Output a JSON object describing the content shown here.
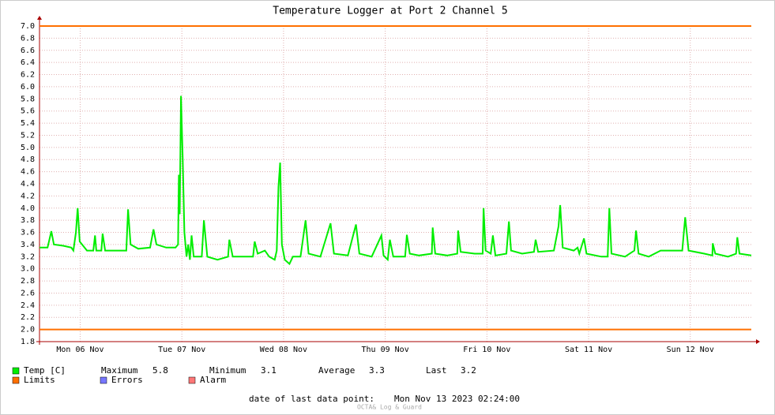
{
  "chart_data": {
    "type": "line",
    "title": "Temperature Logger at Port 2 Channel 5",
    "xlim": [
      0,
      168
    ],
    "xticks": [
      {
        "value": 9.6,
        "label": "Mon 06 Nov"
      },
      {
        "value": 33.6,
        "label": "Tue 07 Nov"
      },
      {
        "value": 57.6,
        "label": "Wed 08 Nov"
      },
      {
        "value": 81.6,
        "label": "Thu 09 Nov"
      },
      {
        "value": 105.6,
        "label": "Fri 10 Nov"
      },
      {
        "value": 129.6,
        "label": "Sat 11 Nov"
      },
      {
        "value": 153.6,
        "label": "Sun 12 Nov"
      }
    ],
    "ylim": [
      1.8,
      7.0
    ],
    "yticks": [
      1.8,
      {
        "value": 2.0,
        "label": "2.0"
      },
      2.2,
      2.4,
      2.6,
      2.8,
      {
        "value": 3.0,
        "label": "3.0"
      },
      3.2,
      3.4,
      3.6,
      3.8,
      {
        "value": 4.0,
        "label": "4.0"
      },
      4.2,
      4.4,
      4.6,
      4.8,
      {
        "value": 5.0,
        "label": "5.0"
      },
      5.2,
      5.4,
      5.6,
      5.8,
      {
        "value": 6.0,
        "label": "6.0"
      },
      6.2,
      6.4,
      6.6,
      6.8,
      {
        "value": 7.0,
        "label": "7.0"
      }
    ],
    "grid": true,
    "series": [
      {
        "name": "Temp [C]",
        "color": "#00ee00",
        "x": [
          0,
          1.9,
          2.8,
          3.4,
          5.6,
          7.5,
          8.0,
          8.6,
          9.0,
          9.5,
          11.2,
          12.7,
          13.1,
          13.4,
          14.6,
          14.9,
          15.5,
          18.7,
          20.5,
          20.9,
          21.5,
          23.3,
          26.1,
          26.9,
          27.6,
          29.9,
          32.1,
          32.7,
          32.9,
          33.1,
          33.4,
          33.8,
          34.2,
          34.7,
          35.1,
          35.5,
          35.9,
          36.4,
          38.3,
          38.8,
          39.6,
          42.0,
          44.5,
          44.8,
          45.6,
          48.6,
          50.4,
          50.8,
          51.5,
          53.2,
          54.2,
          55.5,
          56.0,
          56.4,
          56.8,
          57.2,
          57.9,
          59.0,
          59.8,
          61.6,
          62.8,
          63.5,
          66.3,
          68.7,
          69.5,
          72.8,
          74.7,
          75.5,
          78.4,
          80.7,
          81.2,
          82.2,
          82.7,
          83.5,
          86.3,
          86.7,
          87.4,
          89.6,
          92.6,
          92.8,
          93.4,
          96.2,
          98.6,
          98.8,
          99.4,
          102.7,
          104.6,
          104.8,
          105.3,
          106.5,
          107.0,
          107.6,
          110.2,
          110.8,
          111.3,
          113.9,
          116.7,
          117.1,
          117.7,
          121.4,
          122.5,
          122.9,
          123.5,
          126.1,
          127.0,
          127.4,
          128.5,
          129.1,
          132.6,
          134.1,
          134.5,
          135.0,
          138.2,
          140.4,
          140.8,
          141.4,
          143.8,
          146.6,
          149.4,
          151.7,
          152.4,
          153.2,
          156.9,
          158.8,
          158.9,
          159.5,
          162.5,
          164.4,
          164.7,
          165.2,
          168
        ],
        "values": [
          3.35,
          3.35,
          3.62,
          3.4,
          3.38,
          3.35,
          3.3,
          3.6,
          4.0,
          3.45,
          3.3,
          3.3,
          3.55,
          3.3,
          3.3,
          3.58,
          3.3,
          3.3,
          3.3,
          3.98,
          3.4,
          3.33,
          3.35,
          3.65,
          3.4,
          3.35,
          3.35,
          3.4,
          4.55,
          3.9,
          5.85,
          4.8,
          3.6,
          3.2,
          3.4,
          3.15,
          3.55,
          3.2,
          3.2,
          3.8,
          3.2,
          3.15,
          3.2,
          3.48,
          3.2,
          3.2,
          3.2,
          3.45,
          3.25,
          3.3,
          3.2,
          3.15,
          3.3,
          4.35,
          4.75,
          3.4,
          3.15,
          3.08,
          3.2,
          3.2,
          3.8,
          3.25,
          3.2,
          3.75,
          3.25,
          3.22,
          3.73,
          3.25,
          3.2,
          3.55,
          3.22,
          3.15,
          3.48,
          3.2,
          3.2,
          3.56,
          3.25,
          3.22,
          3.25,
          3.68,
          3.25,
          3.22,
          3.25,
          3.63,
          3.28,
          3.25,
          3.25,
          4.0,
          3.3,
          3.25,
          3.55,
          3.22,
          3.25,
          3.78,
          3.3,
          3.25,
          3.28,
          3.48,
          3.28,
          3.3,
          3.7,
          4.05,
          3.35,
          3.3,
          3.35,
          3.25,
          3.5,
          3.25,
          3.2,
          3.2,
          4.0,
          3.25,
          3.2,
          3.3,
          3.63,
          3.25,
          3.2,
          3.3,
          3.3,
          3.3,
          3.85,
          3.3,
          3.25,
          3.22,
          3.42,
          3.25,
          3.2,
          3.25,
          3.52,
          3.25,
          3.22
        ]
      }
    ],
    "limits": {
      "name": "Limits",
      "color": "#ff7000",
      "values": [
        2.0,
        7.0
      ]
    },
    "legend_extra": [
      {
        "name": "Errors",
        "color": "#7777ff"
      },
      {
        "name": "Alarm",
        "color": "#ff7777"
      }
    ],
    "stats": [
      {
        "label": "Maximum",
        "value": 5.8
      },
      {
        "label": "Minimum",
        "value": 3.1
      },
      {
        "label": "Average",
        "value": 3.3
      },
      {
        "label": "Last",
        "value": 3.2
      }
    ],
    "footer": {
      "label": "date of last data point:",
      "date": "Mon Nov 13 2023 02:24:00",
      "credit": "OCTA& Log & Guard"
    }
  }
}
